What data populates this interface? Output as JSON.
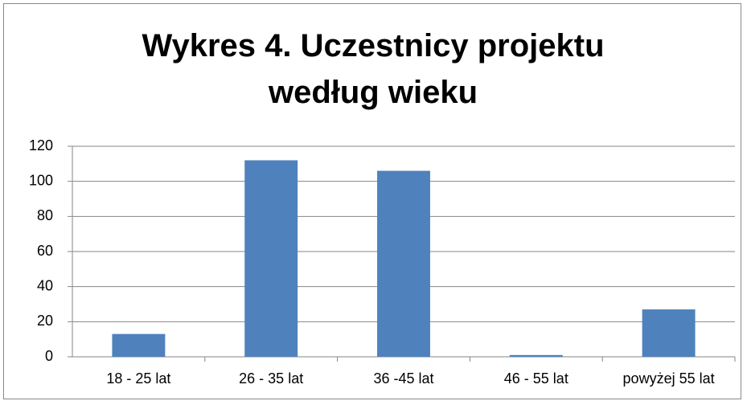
{
  "chart_data": {
    "type": "bar",
    "title": "Wykres 4. Uczestnicy projektu według wieku",
    "categories": [
      "18 - 25 lat",
      "26 - 35 lat",
      "36 -45 lat",
      "46 - 55 lat",
      "powyżej 55 lat"
    ],
    "values": [
      13,
      112,
      106,
      1,
      27
    ],
    "color": "#4f81bd",
    "ylim": [
      0,
      120
    ],
    "yticks": [
      0,
      20,
      40,
      60,
      80,
      100,
      120
    ],
    "grid": true
  }
}
